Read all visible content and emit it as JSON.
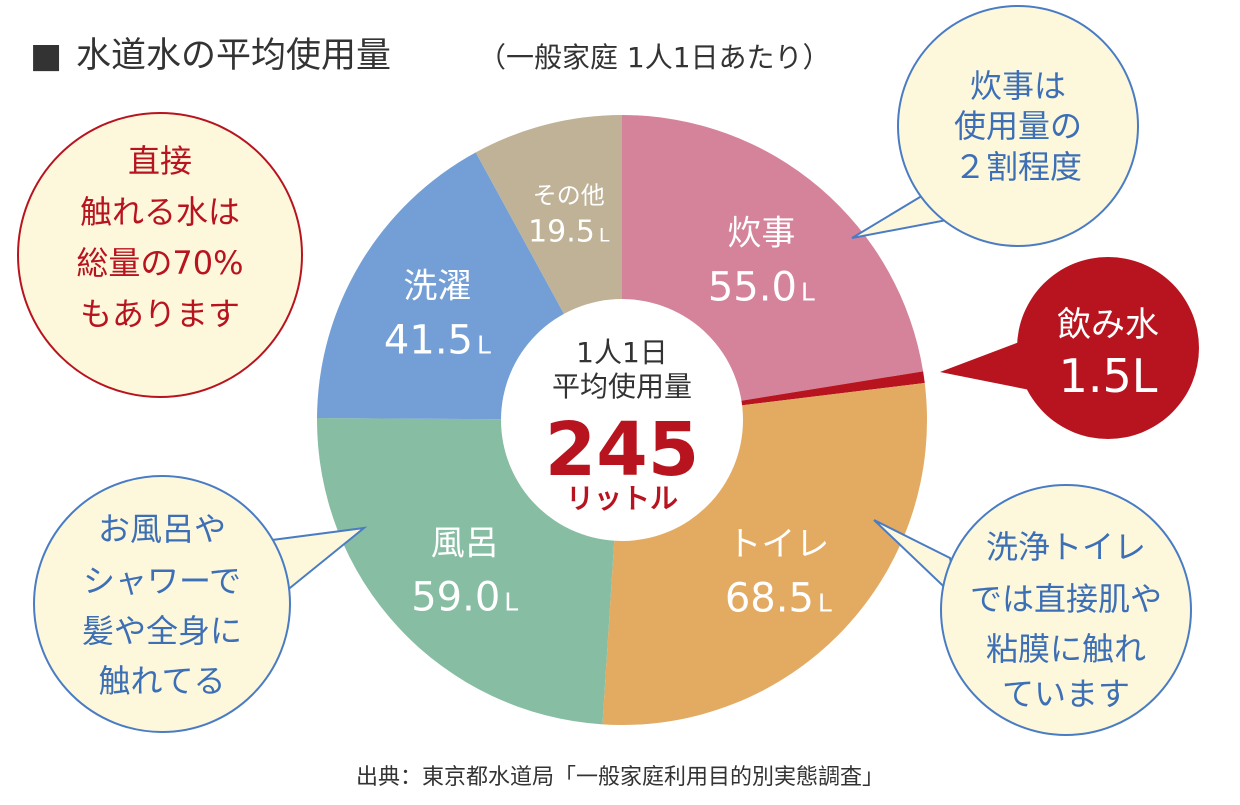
{
  "title": {
    "marker": "■",
    "main": "水道水の平均使用量",
    "sub": "（一般家庭 1人1日あたり）"
  },
  "center": {
    "line1": "1人1日",
    "line2": "平均使用量",
    "total": "245",
    "unit": "リットル"
  },
  "chart_data": {
    "type": "pie",
    "style": "donut",
    "unit": "L",
    "total": 245,
    "slices": [
      {
        "label": "炊事",
        "value": 55.0,
        "value_text": "55.0",
        "color": "#d4839a"
      },
      {
        "label": "飲み水",
        "value": 1.5,
        "value_text": "1.5",
        "color": "#b8141f"
      },
      {
        "label": "トイレ",
        "value": 68.5,
        "value_text": "68.5",
        "color": "#e3aa62"
      },
      {
        "label": "風呂",
        "value": 59.0,
        "value_text": "59.0",
        "color": "#87bda2"
      },
      {
        "label": "洗濯",
        "value": 41.5,
        "value_text": "41.5",
        "color": "#739fd6"
      },
      {
        "label": "その他",
        "value": 19.5,
        "value_text": "19.5",
        "color": "#bfb297"
      }
    ]
  },
  "callouts": {
    "direct_contact": [
      "直接",
      "触れる水は",
      "総量の70%",
      "もあります"
    ],
    "cooking": [
      "炊事は",
      "使用量の",
      "２割程度"
    ],
    "drinking": [
      "飲み水",
      "1.5L"
    ],
    "toilet": [
      "洗浄トイレ",
      "では直接肌や",
      "粘膜に触れ",
      "ています"
    ],
    "bath": [
      "お風呂や",
      "シャワーで",
      "髪や全身に",
      "触れてる"
    ]
  },
  "source": "出典：東京都水道局「一般家庭利用目的別実態調査」",
  "colors": {
    "red": "#b8141f",
    "blue_text": "#3d6fb6",
    "bubble_fill": "#fdf8dc",
    "bubble_stroke": "#4a7cc4"
  }
}
